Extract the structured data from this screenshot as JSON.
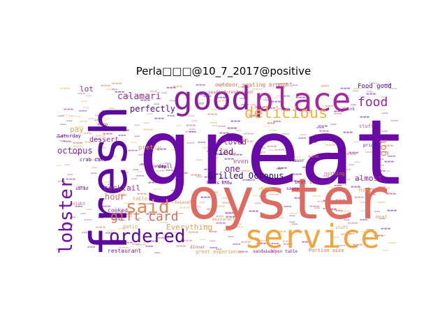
{
  "title": "Perla□□□@10_7_2017@positive",
  "words": [
    {
      "text": "great",
      "color": "#6a0aa6"
    },
    {
      "text": "fresh",
      "color": "#5b0a9c"
    },
    {
      "text": "oyster",
      "color": "#de6b62"
    },
    {
      "text": "service",
      "color": "#f3a43c"
    },
    {
      "text": "good",
      "color": "#8c1d9e"
    },
    {
      "text": "place",
      "color": "#a5279a"
    },
    {
      "text": "delicious",
      "color": "#f0b442"
    },
    {
      "text": "lobster",
      "color": "#6e0ea8"
    },
    {
      "text": "ordered",
      "color": "#5a0a9a"
    },
    {
      "text": "said",
      "color": "#e08a55"
    },
    {
      "text": "gift card",
      "color": "#d4705e"
    },
    {
      "text": "food",
      "color": "#9a2698"
    },
    {
      "text": "got",
      "color": "#e67c5a"
    },
    {
      "text": "Grilled Octopus",
      "color": "#2a076f"
    },
    {
      "text": "octopus",
      "color": "#8e1e9f"
    },
    {
      "text": "calamari",
      "color": "#a22a97"
    },
    {
      "text": "perfectly",
      "color": "#4e0a94"
    },
    {
      "text": "fried",
      "color": "#5a0d9b"
    },
    {
      "text": "loved",
      "color": "#a32a98"
    },
    {
      "text": "one",
      "color": "#6a0aa6"
    },
    {
      "text": "hour",
      "color": "#cf6a6a"
    },
    {
      "text": "cocktail",
      "color": "#9d2a99"
    },
    {
      "text": "pay",
      "color": "#e3a04a"
    },
    {
      "text": "almost",
      "color": "#9a2698"
    },
    {
      "text": "Everything",
      "color": "#e5a25a"
    },
    {
      "text": "dessert",
      "color": "#9a2698"
    },
    {
      "text": "Food good",
      "color": "#4a0a8e"
    },
    {
      "text": "outdoor seating brought",
      "color": "#d4705e"
    },
    {
      "text": "lot",
      "color": "#9a2698"
    },
    {
      "text": "even",
      "color": "#c05a7a"
    },
    {
      "text": "restaurant",
      "color": "#7a1aa0"
    },
    {
      "text": "great experience",
      "color": "#e0a050"
    },
    {
      "text": "best tasting",
      "color": "#8a1d9e"
    },
    {
      "text": "Portion size",
      "color": "#d4705e"
    },
    {
      "text": "Saturday",
      "color": "#6a0aa6"
    },
    {
      "text": "crab cake",
      "color": "#4e0a94"
    },
    {
      "text": "pretty",
      "color": "#e0a050"
    },
    {
      "text": "Mary",
      "color": "#f0b442"
    },
    {
      "text": "stuff",
      "color": "#c05a7a"
    },
    {
      "text": "cooked",
      "color": "#9a2698"
    },
    {
      "text": "nothing",
      "color": "#d4705e"
    },
    {
      "text": "hosts know",
      "color": "#6a0aa6"
    },
    {
      "text": "Open table",
      "color": "#9a2698"
    },
    {
      "text": "patio",
      "color": "#e0a050"
    },
    {
      "text": "small",
      "color": "#6a0aa6"
    },
    {
      "text": "sandwich",
      "color": "#8a1d9e"
    },
    {
      "text": "seafood restaurant",
      "color": "#c05a7a"
    },
    {
      "text": "table",
      "color": "#e0a050"
    },
    {
      "text": "Sunday",
      "color": "#4e0a94"
    },
    {
      "text": "mozzarella",
      "color": "#e08a55"
    },
    {
      "text": "menu",
      "color": "#9a2698"
    },
    {
      "text": "flavor",
      "color": "#6a0aa6"
    },
    {
      "text": "meal",
      "color": "#e0a050"
    },
    {
      "text": "dinner",
      "color": "#c05a7a"
    },
    {
      "text": "price",
      "color": "#4e0a94"
    },
    {
      "text": "staff",
      "color": "#e0a050"
    },
    {
      "text": "drink",
      "color": "#9a2698"
    },
    {
      "text": "wine",
      "color": "#d4705e"
    },
    {
      "text": "salad",
      "color": "#6a0aa6"
    },
    {
      "text": "shrimp",
      "color": "#f0b442"
    },
    {
      "text": "sauce",
      "color": "#8a1d9e"
    },
    {
      "text": "friendly",
      "color": "#e08a55"
    },
    {
      "text": "amazing",
      "color": "#4e0a94"
    },
    {
      "text": "night",
      "color": "#c05a7a"
    }
  ]
}
